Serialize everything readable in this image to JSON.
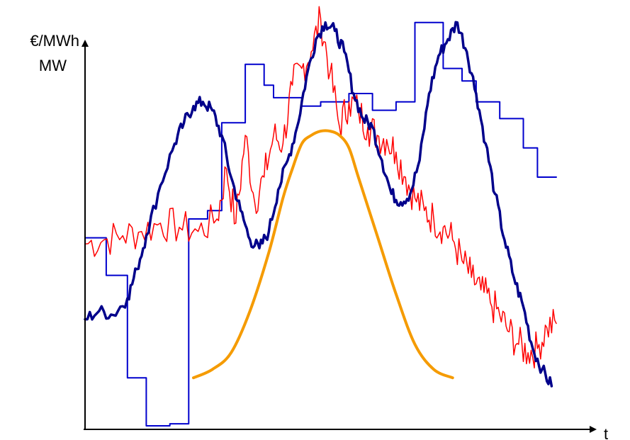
{
  "chart_data": {
    "type": "line",
    "y_axis_labels": [
      "€/MWh",
      "MW"
    ],
    "x_axis_label": "t",
    "x_range": [
      0,
      100
    ],
    "y_range": [
      0,
      100
    ],
    "grid": false,
    "legend": "none",
    "tick_labels": "none",
    "series": [
      {
        "color": "#0000cd",
        "line_width": 2,
        "shape": "step",
        "x": [
          0,
          4.5,
          4.5,
          9,
          9,
          13,
          13,
          18,
          18,
          22,
          22,
          26,
          26,
          29,
          29,
          34,
          34,
          38,
          38,
          40,
          40,
          46,
          46,
          50,
          50,
          56,
          56,
          61,
          61,
          66,
          66,
          70,
          70,
          76,
          76,
          80,
          80,
          83,
          83,
          88,
          88,
          93,
          93,
          96,
          96,
          100
        ],
        "y": [
          45.5,
          45.5,
          36.5,
          36.5,
          12,
          12,
          0.5,
          0.5,
          1,
          1,
          50,
          50,
          52,
          52,
          73,
          73,
          87,
          87,
          82,
          82,
          79,
          79,
          77,
          77,
          78,
          78,
          80,
          80,
          76,
          76,
          78,
          78,
          97,
          97,
          86,
          86,
          83,
          83,
          78,
          78,
          74,
          74,
          67,
          67,
          60,
          60
        ]
      },
      {
        "color": "#ff0000",
        "line_width": 1.5,
        "shape": "noisy",
        "x": [
          0,
          4,
          8,
          12,
          16,
          20,
          24,
          28,
          30,
          32,
          34,
          36,
          38,
          40,
          42,
          44,
          46,
          48,
          50,
          52,
          54,
          56,
          58,
          60,
          62,
          64,
          66,
          68,
          70,
          72,
          74,
          76,
          78,
          80,
          82,
          84,
          86,
          88,
          90,
          92,
          94,
          96,
          98,
          100
        ],
        "y": [
          44,
          45,
          46,
          47,
          49,
          48,
          47,
          50,
          62,
          49,
          70,
          54,
          60,
          70,
          68,
          82,
          86,
          90,
          98,
          85,
          72,
          78,
          76,
          72,
          70,
          69,
          66,
          60,
          55,
          52,
          50,
          48,
          45,
          40,
          36,
          33,
          30,
          27,
          23,
          20,
          18,
          19,
          24,
          25
        ]
      },
      {
        "color": "#00008b",
        "line_width": 3.5,
        "shape": "noisy",
        "x": [
          0,
          3,
          6,
          9,
          11,
          13,
          16,
          19,
          21,
          23,
          25,
          27,
          29,
          31,
          33,
          35,
          37,
          39,
          41,
          43,
          45,
          47,
          49,
          51,
          53,
          55,
          57,
          59,
          61,
          63,
          65,
          67,
          69,
          71,
          73,
          75,
          77,
          79,
          81,
          83,
          85,
          87,
          89,
          91,
          93,
          95,
          97,
          99
        ],
        "y": [
          26,
          28,
          27,
          31,
          38,
          46,
          58,
          68,
          73,
          77,
          78,
          76,
          70,
          60,
          52,
          45,
          43,
          47,
          57,
          64,
          72,
          84,
          93,
          97,
          95,
          90,
          80,
          74,
          72,
          64,
          56,
          54,
          56,
          64,
          80,
          89,
          93,
          97,
          90,
          80,
          68,
          56,
          45,
          36,
          29,
          19,
          14,
          10
        ]
      },
      {
        "color": "#f59b00",
        "line_width": 4,
        "shape": "smooth",
        "x": [
          23,
          27,
          31,
          35,
          39,
          42,
          44,
          46,
          48,
          50,
          52,
          54,
          56,
          58,
          62,
          66,
          70,
          74,
          78
        ],
        "y": [
          12,
          14,
          18,
          28,
          42,
          55,
          62,
          68,
          70,
          71,
          71,
          70,
          67,
          60,
          46,
          32,
          20,
          14,
          12
        ]
      }
    ]
  }
}
